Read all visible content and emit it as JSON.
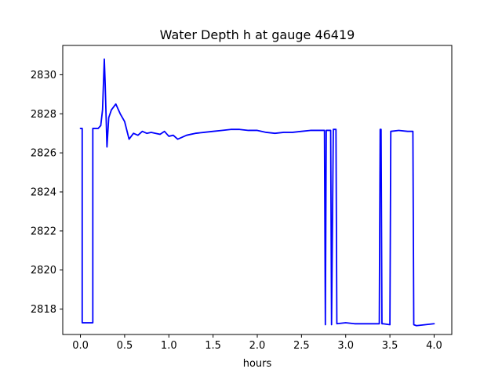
{
  "chart_data": {
    "type": "line",
    "title": "Water Depth h at gauge 46419",
    "xlabel": "hours",
    "ylabel": "",
    "xlim": [
      -0.2,
      4.2
    ],
    "ylim": [
      2816.7,
      2831.5
    ],
    "xticks": [
      0.0,
      0.5,
      1.0,
      1.5,
      2.0,
      2.5,
      3.0,
      3.5,
      4.0
    ],
    "xtick_labels": [
      "0.0",
      "0.5",
      "1.0",
      "1.5",
      "2.0",
      "2.5",
      "3.0",
      "3.5",
      "4.0"
    ],
    "yticks": [
      2818,
      2820,
      2822,
      2824,
      2826,
      2828,
      2830
    ],
    "ytick_labels": [
      "2818",
      "2820",
      "2822",
      "2824",
      "2826",
      "2828",
      "2830"
    ],
    "grid": false,
    "legend": "none",
    "series": [
      {
        "color": "#0000ff",
        "x": [
          0.0,
          0.02,
          0.02,
          0.14,
          0.14,
          0.2,
          0.23,
          0.25,
          0.27,
          0.28,
          0.3,
          0.32,
          0.35,
          0.4,
          0.45,
          0.5,
          0.55,
          0.6,
          0.65,
          0.7,
          0.75,
          0.8,
          0.85,
          0.9,
          0.95,
          1.0,
          1.05,
          1.1,
          1.15,
          1.2,
          1.25,
          1.3,
          1.4,
          1.5,
          1.6,
          1.7,
          1.8,
          1.9,
          2.0,
          2.1,
          2.2,
          2.3,
          2.4,
          2.5,
          2.6,
          2.7,
          2.76,
          2.77,
          2.78,
          2.8,
          2.83,
          2.84,
          2.86,
          2.87,
          2.89,
          2.9,
          3.0,
          3.1,
          3.2,
          3.3,
          3.38,
          3.39,
          3.4,
          3.41,
          3.42,
          3.5,
          3.51,
          3.6,
          3.7,
          3.76,
          3.77,
          3.8,
          3.9,
          4.0
        ],
        "y": [
          2827.25,
          2827.25,
          2817.3,
          2817.3,
          2827.25,
          2827.25,
          2827.4,
          2828.2,
          2830.8,
          2829.5,
          2826.3,
          2827.8,
          2828.2,
          2828.5,
          2828.0,
          2827.6,
          2826.7,
          2827.0,
          2826.9,
          2827.1,
          2827.0,
          2827.05,
          2827.0,
          2826.95,
          2827.1,
          2826.85,
          2826.9,
          2826.7,
          2826.8,
          2826.9,
          2826.95,
          2827.0,
          2827.05,
          2827.1,
          2827.15,
          2827.2,
          2827.2,
          2827.15,
          2827.15,
          2827.05,
          2827.0,
          2827.05,
          2827.05,
          2827.1,
          2827.15,
          2827.15,
          2827.15,
          2817.2,
          2827.15,
          2827.15,
          2827.15,
          2817.2,
          2827.2,
          2827.2,
          2827.2,
          2817.25,
          2817.3,
          2817.25,
          2817.25,
          2817.25,
          2817.25,
          2827.2,
          2827.2,
          2817.25,
          2817.25,
          2817.2,
          2827.1,
          2827.15,
          2827.1,
          2827.1,
          2817.2,
          2817.15,
          2817.2,
          2817.25
        ]
      }
    ]
  }
}
